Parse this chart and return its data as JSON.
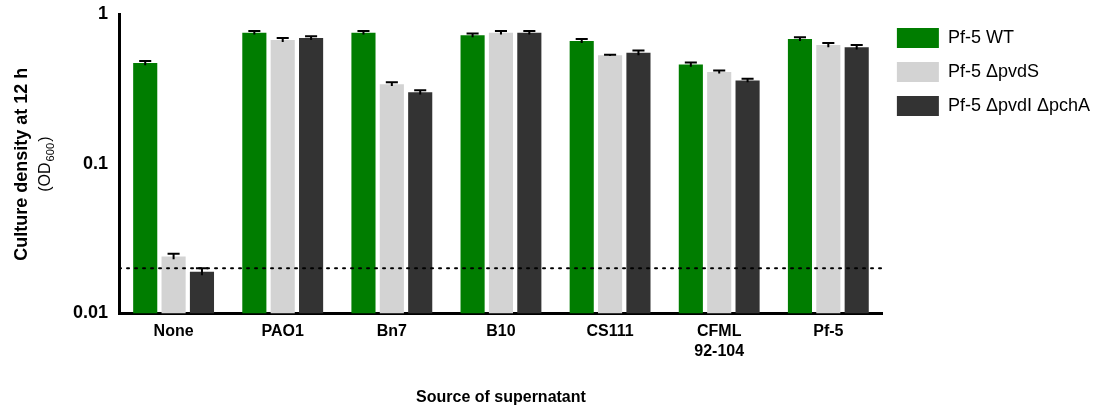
{
  "chart_data": {
    "type": "bar",
    "xlabel": "Source of supernatant",
    "ylabel": "Culture density at 12 h\n(OD$_{600}$)",
    "categories": [
      "None",
      "PAO1",
      "Bn7",
      "B10",
      "CS111",
      "CFML\n92-104",
      "Pf-5"
    ],
    "series": [
      {
        "name": "Pf-5 WT",
        "color": "#007d00",
        "values": [
          0.47,
          0.75,
          0.75,
          0.72,
          0.66,
          0.46,
          0.68
        ],
        "errors": [
          0.015,
          0.02,
          0.02,
          0.02,
          0.02,
          0.015,
          0.02
        ]
      },
      {
        "name": "Pf-5 ΔpvdS",
        "color": "#d3d3d3",
        "values": [
          0.024,
          0.67,
          0.34,
          0.75,
          0.53,
          0.41,
          0.62
        ],
        "errors": [
          0.001,
          0.02,
          0.01,
          0.02,
          0.005,
          0.01,
          0.02
        ]
      },
      {
        "name": "Pf-5 ΔpvdI ΔpchA",
        "color": "#333333",
        "values": [
          0.019,
          0.69,
          0.3,
          0.75,
          0.55,
          0.36,
          0.6
        ],
        "errors": [
          0.001,
          0.02,
          0.01,
          0.02,
          0.02,
          0.01,
          0.02
        ]
      }
    ],
    "log": "y",
    "ylim": [
      0.01,
      1
    ],
    "yticks": [
      0.01,
      0.1,
      1
    ],
    "ref_lines": [
      {
        "axis": "y",
        "value": 0.02,
        "line_style": "dotted",
        "color": "#000000"
      }
    ],
    "grid": false,
    "legend": "top right"
  }
}
